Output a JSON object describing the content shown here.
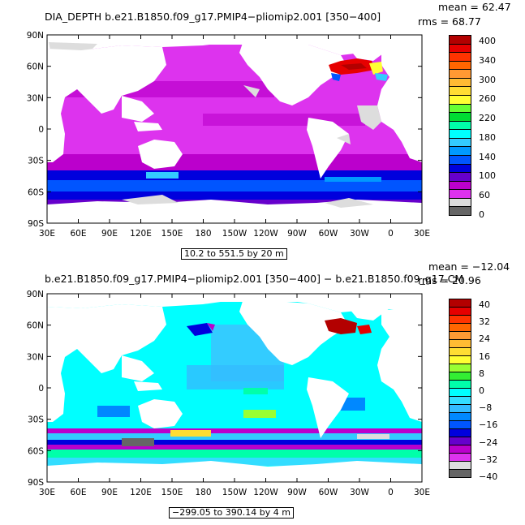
{
  "panel1": {
    "title": "DIA_DEPTH b.e21.B1850.f09_g17.PMIP4−pliomip2.001 [350−400]",
    "mean_text": "mean = 62.47",
    "rms_text": "rms = 68.77",
    "range_text": "10.2 to 551.5 by 20 m",
    "lat_labels": [
      "90N",
      "60N",
      "30N",
      "0",
      "30S",
      "60S",
      "90S"
    ],
    "lon_labels": [
      "30E",
      "60E",
      "90E",
      "120E",
      "150E",
      "180",
      "150W",
      "120W",
      "90W",
      "60W",
      "30W",
      "0",
      "30E"
    ],
    "colorbar_labels": [
      "400",
      "340",
      "300",
      "260",
      "220",
      "180",
      "140",
      "100",
      "60",
      "0"
    ],
    "colorbar_colors": [
      "#b30000",
      "#e60000",
      "#ff3300",
      "#ff6600",
      "#ff9933",
      "#ffbb33",
      "#ffdd33",
      "#ffff33",
      "#66ff33",
      "#00dd33",
      "#00ffaa",
      "#00ffff",
      "#33ccff",
      "#0099ff",
      "#0055ff",
      "#0000dd",
      "#6600cc",
      "#bb00cc",
      "#dd33ee",
      "#dddddd",
      "#666666"
    ]
  },
  "panel2": {
    "title": "b.e21.B1850.f09_g17.PMIP4−pliomip2.001 [350−400] − b.e21.B1850.f09_g17.CM",
    "mean_text": "mean = −12.04",
    "rms_text": "rms = 20.96",
    "range_text": "−299.05 to 390.14 by 4 m",
    "lat_labels": [
      "90N",
      "60N",
      "30N",
      "0",
      "30S",
      "60S",
      "90S"
    ],
    "lon_labels": [
      "30E",
      "60E",
      "90E",
      "120E",
      "150E",
      "180",
      "150W",
      "120W",
      "90W",
      "60W",
      "30W",
      "0",
      "30E"
    ],
    "colorbar_labels": [
      "40",
      "32",
      "24",
      "16",
      "8",
      "0",
      "−8",
      "−16",
      "−24",
      "−32",
      "−40"
    ],
    "colorbar_colors": [
      "#b30000",
      "#e60000",
      "#ff3300",
      "#ff6600",
      "#ff9933",
      "#ffbb33",
      "#ffdd33",
      "#ffff33",
      "#99ff33",
      "#33ee33",
      "#00ffaa",
      "#00ffff",
      "#33ddff",
      "#33bbff",
      "#0088ff",
      "#0055ff",
      "#0000dd",
      "#6600cc",
      "#bb00cc",
      "#dd33ee",
      "#dddddd",
      "#666666"
    ]
  }
}
